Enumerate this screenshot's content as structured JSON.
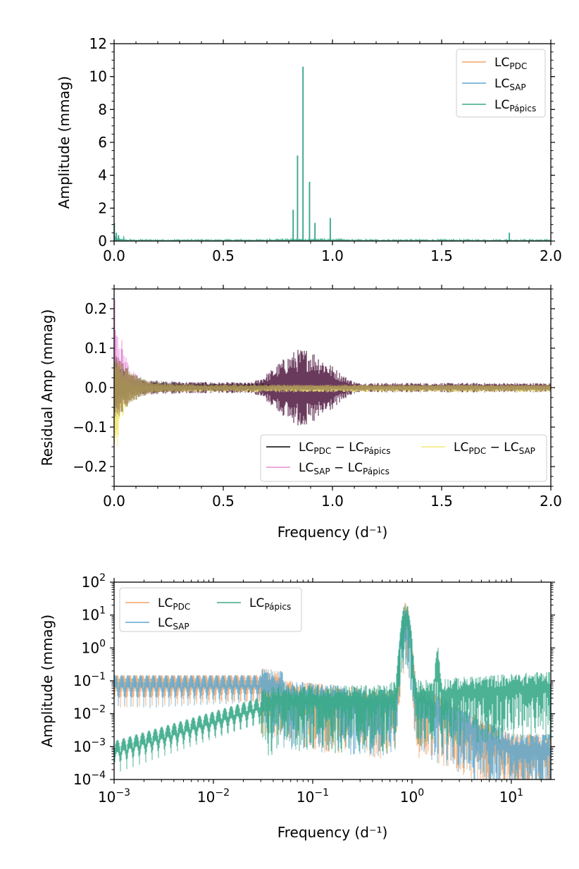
{
  "colors": {
    "pdc": "#f4a46a",
    "sap": "#5fa8cf",
    "papics": "#3aaa88",
    "resid_pdc_papics": "#000000",
    "resid_sap_papics": "#e48fd8",
    "resid_pdc_sap": "#f1ea74",
    "resid_fill": "#6a3a5c"
  },
  "chart_data": [
    {
      "type": "line",
      "xlabel": "",
      "ylabel": "Amplitude (mmag)",
      "xlim": [
        0,
        2.0
      ],
      "ylim": [
        0,
        12
      ],
      "x_ticks": [
        "0.0",
        "0.5",
        "1.0",
        "1.5",
        "2.0"
      ],
      "y_ticks": [
        "0",
        "2",
        "4",
        "6",
        "8",
        "10",
        "12"
      ],
      "legend_position": "top-right",
      "legend": [
        {
          "label": "LC",
          "sub": "PDC",
          "color_key": "pdc"
        },
        {
          "label": "LC",
          "sub": "SAP",
          "color_key": "sap"
        },
        {
          "label": "LC",
          "sub": "Pápics",
          "color_key": "papics"
        }
      ],
      "peaks": [
        {
          "x": 0.001,
          "y": 1.1
        },
        {
          "x": 0.01,
          "y": 0.5
        },
        {
          "x": 0.02,
          "y": 0.35
        },
        {
          "x": 0.82,
          "y": 1.9
        },
        {
          "x": 0.84,
          "y": 5.2
        },
        {
          "x": 0.865,
          "y": 10.6
        },
        {
          "x": 0.895,
          "y": 3.6
        },
        {
          "x": 0.92,
          "y": 1.1
        },
        {
          "x": 0.99,
          "y": 1.4
        },
        {
          "x": 1.81,
          "y": 0.5
        }
      ],
      "noise_floor": 0.1
    },
    {
      "type": "line",
      "xlabel": "Frequency (d⁻¹)",
      "ylabel": "Residual Amp (mmag)",
      "xlim": [
        0,
        2.0
      ],
      "ylim": [
        -0.25,
        0.25
      ],
      "x_ticks": [
        "0.0",
        "0.5",
        "1.0",
        "1.5",
        "2.0"
      ],
      "y_ticks": [
        "−0.2",
        "−0.1",
        "0.0",
        "0.1",
        "0.2"
      ],
      "legend_position": "bottom-right",
      "legend": [
        {
          "label": "LC",
          "sub": "PDC",
          "mid": " − LC",
          "sub2": "Pápics",
          "color_key": "resid_pdc_papics"
        },
        {
          "label": "LC",
          "sub": "SAP",
          "mid": " − LC",
          "sub2": "Pápics",
          "color_key": "resid_sap_papics"
        },
        {
          "label": "LC",
          "sub": "PDC",
          "mid": " − LC",
          "sub2": "SAP",
          "color_key": "resid_pdc_sap"
        }
      ],
      "envelope_peak": {
        "x": 0.87,
        "amplitude": 0.1
      }
    },
    {
      "type": "line",
      "xlabel": "Frequency (d⁻¹)",
      "ylabel": "Amplitude (mmag)",
      "xscale": "log",
      "yscale": "log",
      "xlim": [
        0.001,
        25
      ],
      "ylim": [
        0.0001,
        100
      ],
      "x_ticks": [
        {
          "base": "10",
          "exp": "−3"
        },
        {
          "base": "10",
          "exp": "−2"
        },
        {
          "base": "10",
          "exp": "−1"
        },
        {
          "base": "10",
          "exp": "0"
        },
        {
          "base": "10",
          "exp": "1"
        }
      ],
      "y_ticks": [
        {
          "base": "10",
          "exp": "−4"
        },
        {
          "base": "10",
          "exp": "−3"
        },
        {
          "base": "10",
          "exp": "−2"
        },
        {
          "base": "10",
          "exp": "−1"
        },
        {
          "base": "10",
          "exp": "0"
        },
        {
          "base": "10",
          "exp": "1"
        },
        {
          "base": "10",
          "exp": "2"
        }
      ],
      "legend_position": "top-left",
      "legend": [
        {
          "label": "LC",
          "sub": "PDC",
          "color_key": "pdc"
        },
        {
          "label": "LC",
          "sub": "SAP",
          "color_key": "sap"
        },
        {
          "label": "LC",
          "sub": "Pápics",
          "color_key": "papics"
        }
      ],
      "main_peak": {
        "x": 0.865,
        "y": 10.6
      }
    }
  ]
}
